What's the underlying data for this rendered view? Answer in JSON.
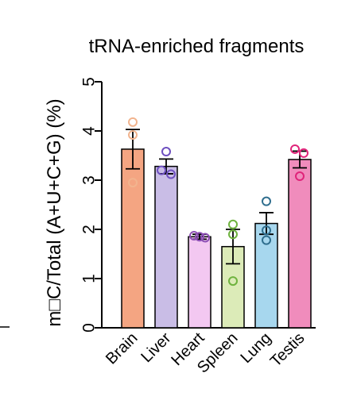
{
  "chart_data": {
    "type": "bar",
    "title": "tRNA-enriched fragments",
    "ylabel": "m□C/Total (A+U+C+G) (%)",
    "xlabel": "",
    "ylim": [
      0,
      5
    ],
    "yticks": [
      0,
      1,
      2,
      3,
      4,
      5
    ],
    "ytick_labels": [
      "0",
      "1",
      "2",
      "3",
      "4",
      "5"
    ],
    "grid": false,
    "categories": [
      "Brain",
      "Liver",
      "Heart",
      "Spleen",
      "Lung",
      "Testis"
    ],
    "values": [
      3.63,
      3.28,
      1.85,
      1.65,
      2.12,
      3.42
    ],
    "errors": [
      0.4,
      0.15,
      0.05,
      0.35,
      0.22,
      0.17
    ],
    "points": [
      [
        4.18,
        3.92,
        2.95
      ],
      [
        3.58,
        3.2,
        3.12
      ],
      [
        1.87,
        1.85,
        1.83
      ],
      [
        2.1,
        1.9,
        0.95
      ],
      [
        2.57,
        1.98,
        1.78
      ],
      [
        3.63,
        3.55,
        3.08
      ]
    ],
    "fill_colors": [
      "#f4a582",
      "#c9bde6",
      "#f3c8f1",
      "#dcebb8",
      "#a7d7ee",
      "#f08cbc"
    ],
    "point_colors": [
      "#f2b48e",
      "#6e50c0",
      "#8d4fb5",
      "#6fb33f",
      "#2f6e8e",
      "#e0247a"
    ]
  }
}
